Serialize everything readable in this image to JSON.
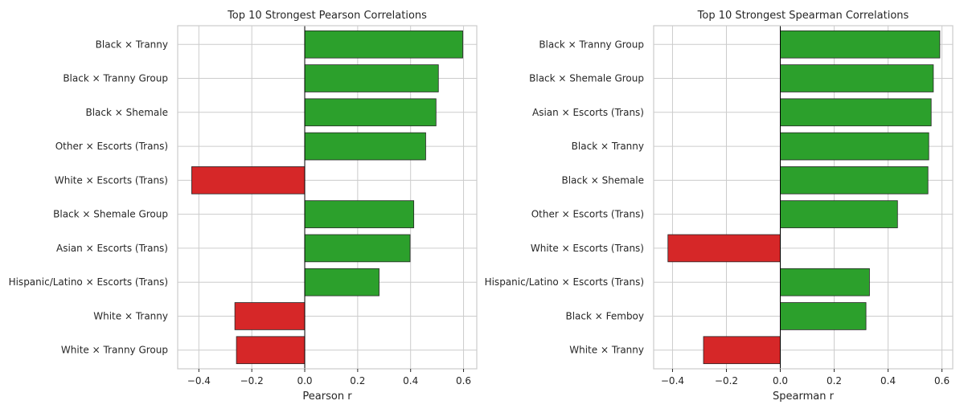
{
  "chart_data": [
    {
      "type": "bar",
      "orientation": "horizontal",
      "title": "Top 10 Strongest Pearson Correlations",
      "xlabel": "Pearson r",
      "ylabel": "",
      "xlim": [
        -0.48,
        0.65
      ],
      "xticks": [
        -0.4,
        -0.2,
        0.0,
        0.2,
        0.4,
        0.6
      ],
      "xtick_labels": [
        "−0.4",
        "−0.2",
        "0.0",
        "0.2",
        "0.4",
        "0.6"
      ],
      "grid": true,
      "categories": [
        "Black × Tranny",
        "Black × Tranny Group",
        "Black × Shemale",
        "Other × Escorts (Trans)",
        "White × Escorts (Trans)",
        "Black × Shemale Group",
        "Asian × Escorts (Trans)",
        "Hispanic/Latino × Escorts (Trans)",
        "White × Tranny",
        "White × Tranny Group"
      ],
      "values": [
        0.597,
        0.505,
        0.496,
        0.457,
        -0.427,
        0.412,
        0.398,
        0.281,
        -0.264,
        -0.258
      ],
      "colors": {
        "positive": "#2ca02c",
        "negative": "#d62728"
      }
    },
    {
      "type": "bar",
      "orientation": "horizontal",
      "title": "Top 10 Strongest Spearman Correlations",
      "xlabel": "Spearman r",
      "ylabel": "",
      "xlim": [
        -0.47,
        0.64
      ],
      "xticks": [
        -0.4,
        -0.2,
        0.0,
        0.2,
        0.4,
        0.6
      ],
      "xtick_labels": [
        "−0.4",
        "−0.2",
        "0.0",
        "0.2",
        "0.4",
        "0.6"
      ],
      "grid": true,
      "categories": [
        "Black × Tranny Group",
        "Black × Shemale Group",
        "Asian × Escorts (Trans)",
        "Black × Tranny",
        "Black × Shemale",
        "Other × Escorts (Trans)",
        "White × Escorts (Trans)",
        "Hispanic/Latino × Escorts (Trans)",
        "Black × Femboy",
        "White × Tranny"
      ],
      "values": [
        0.592,
        0.568,
        0.56,
        0.551,
        0.548,
        0.435,
        -0.417,
        0.331,
        0.318,
        -0.285
      ],
      "colors": {
        "positive": "#2ca02c",
        "negative": "#d62728"
      }
    }
  ]
}
